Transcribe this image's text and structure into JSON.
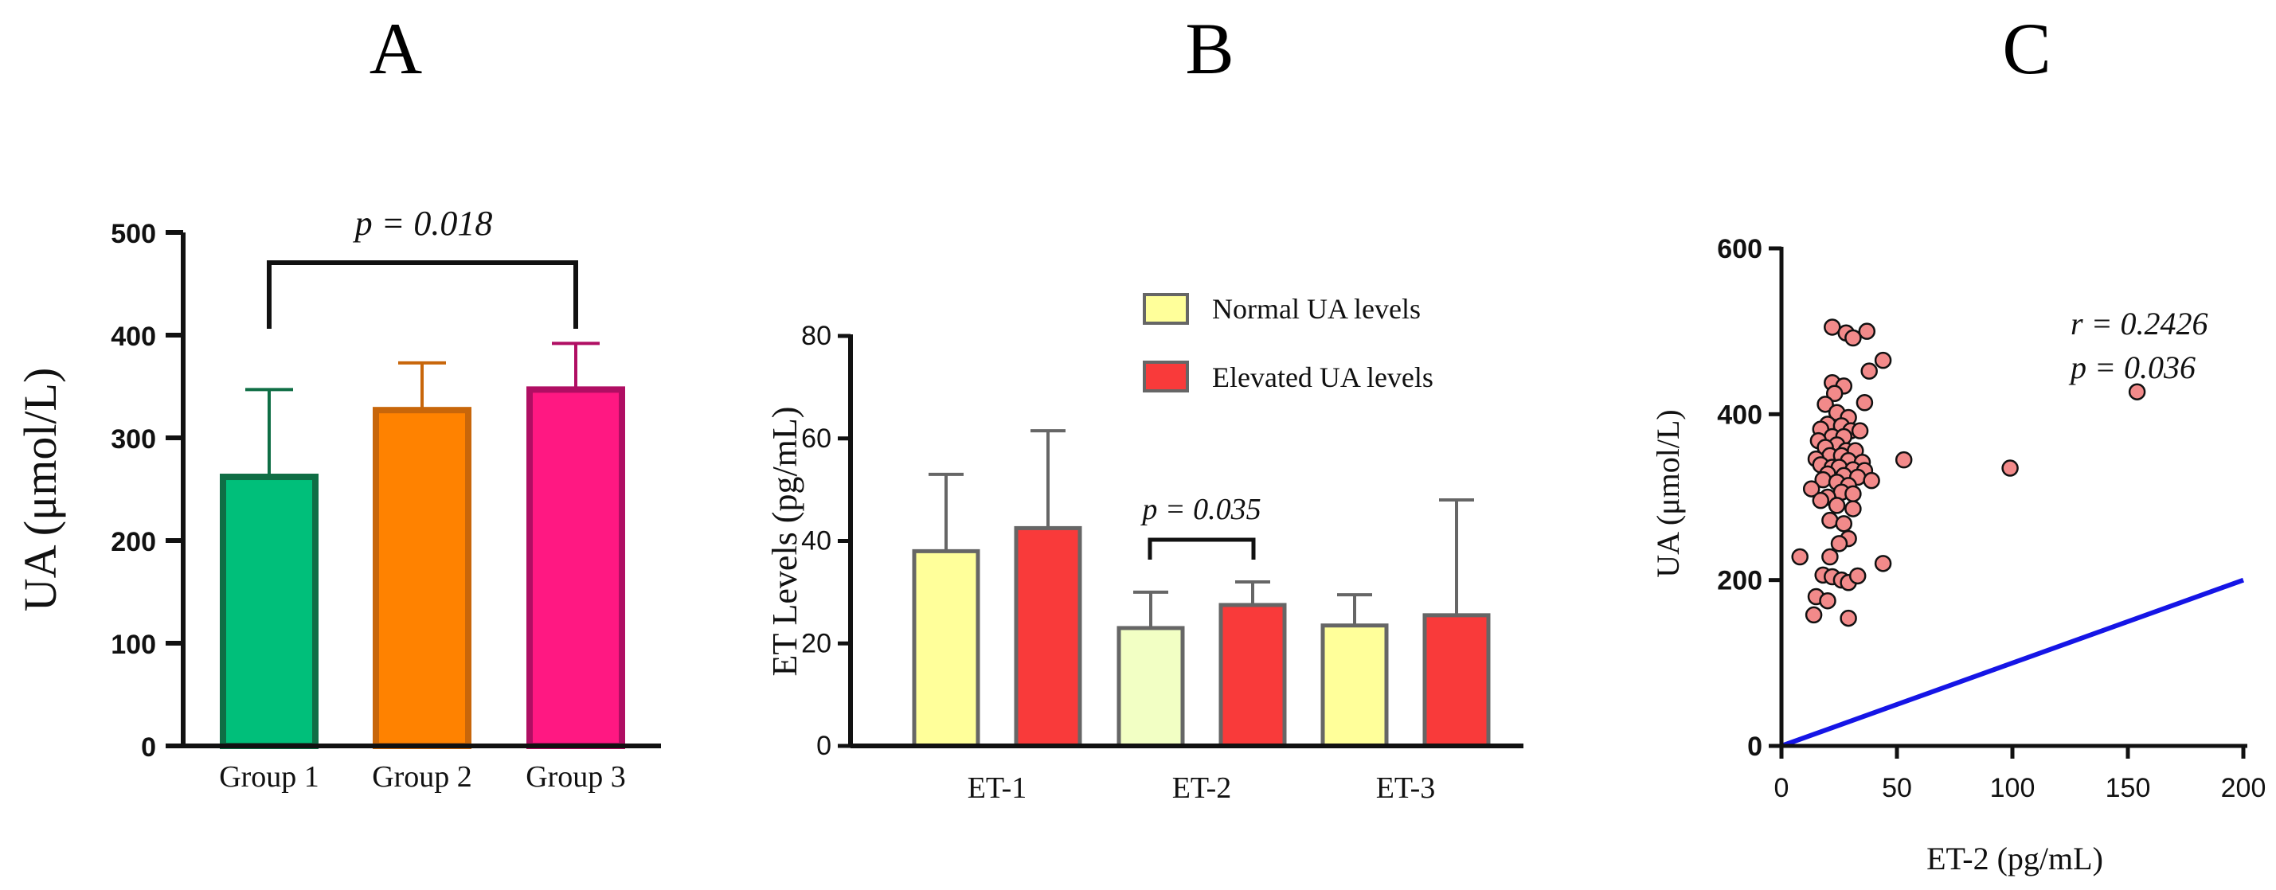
{
  "chart_data": [
    {
      "panel": "A",
      "type": "bar",
      "categories": [
        "Group 1",
        "Group 2",
        "Group 3"
      ],
      "values": [
        262,
        327,
        347
      ],
      "errors": [
        85,
        46,
        45
      ],
      "colors": [
        "#00BF7A",
        "#FF8200",
        "#FF1882"
      ],
      "edge_colors": [
        "#0F6E45",
        "#C8660A",
        "#B00E63"
      ],
      "ylabel": "UA (μmol/L)",
      "ylim": [
        0,
        500
      ],
      "yticks": [
        "0",
        "100",
        "200",
        "300",
        "400",
        "500"
      ],
      "annotation": "p = 0.018"
    },
    {
      "panel": "B",
      "type": "bar",
      "categories": [
        "ET-1",
        "ET-2",
        "ET-3"
      ],
      "series": [
        {
          "name": "Normal UA levels",
          "values": [
            38,
            23,
            23.5
          ],
          "errors": [
            15,
            7,
            6
          ],
          "color": "#FFFF9A"
        },
        {
          "name": "Elevated UA levels",
          "values": [
            42.5,
            27.5,
            25.5
          ],
          "errors": [
            19,
            4.5,
            22.5
          ],
          "color": "#F93A3A"
        }
      ],
      "ylabel": "ET Levels (pg/mL)",
      "ylim": [
        0,
        80
      ],
      "yticks": [
        "0",
        "20",
        "40",
        "60",
        "80"
      ],
      "annotation": "p = 0.035"
    },
    {
      "panel": "C",
      "type": "scatter",
      "xlabel": "ET-2 (pg/mL)",
      "ylabel": "UA (μmol/L)",
      "xlim": [
        0,
        200
      ],
      "ylim": [
        0,
        600
      ],
      "xticks": [
        "0",
        "50",
        "100",
        "150",
        "200"
      ],
      "yticks": [
        "0",
        "200",
        "400",
        "600"
      ],
      "points": [
        [
          22,
          505
        ],
        [
          28,
          498
        ],
        [
          31,
          492
        ],
        [
          37,
          500
        ],
        [
          44,
          465
        ],
        [
          38,
          452
        ],
        [
          22,
          438
        ],
        [
          27,
          434
        ],
        [
          23,
          425
        ],
        [
          36,
          414
        ],
        [
          19,
          412
        ],
        [
          24,
          402
        ],
        [
          29,
          396
        ],
        [
          20,
          388
        ],
        [
          26,
          386
        ],
        [
          17,
          382
        ],
        [
          30,
          380
        ],
        [
          34,
          380
        ],
        [
          22,
          373
        ],
        [
          27,
          373
        ],
        [
          16,
          368
        ],
        [
          24,
          363
        ],
        [
          19,
          360
        ],
        [
          28,
          356
        ],
        [
          32,
          356
        ],
        [
          21,
          350
        ],
        [
          26,
          350
        ],
        [
          15,
          346
        ],
        [
          29,
          344
        ],
        [
          35,
          342
        ],
        [
          53,
          345
        ],
        [
          99,
          335
        ],
        [
          17,
          339
        ],
        [
          22,
          336
        ],
        [
          25,
          336
        ],
        [
          31,
          333
        ],
        [
          36,
          332
        ],
        [
          20,
          328
        ],
        [
          27,
          326
        ],
        [
          33,
          324
        ],
        [
          39,
          320
        ],
        [
          18,
          321
        ],
        [
          24,
          318
        ],
        [
          29,
          314
        ],
        [
          13,
          310
        ],
        [
          26,
          306
        ],
        [
          31,
          304
        ],
        [
          20,
          300
        ],
        [
          17,
          296
        ],
        [
          24,
          290
        ],
        [
          31,
          286
        ],
        [
          21,
          272
        ],
        [
          27,
          268
        ],
        [
          29,
          250
        ],
        [
          25,
          244
        ],
        [
          21,
          228
        ],
        [
          8,
          228
        ],
        [
          44,
          220
        ],
        [
          18,
          206
        ],
        [
          22,
          204
        ],
        [
          26,
          200
        ],
        [
          29,
          197
        ],
        [
          33,
          205
        ],
        [
          15,
          180
        ],
        [
          20,
          175
        ],
        [
          14,
          158
        ],
        [
          29,
          154
        ],
        [
          154,
          427
        ]
      ],
      "regression_line": {
        "x": [
          0,
          200
        ],
        "y": [
          0,
          200
        ],
        "color": "#1515E6"
      },
      "annotation_r": "r = 0.2426",
      "annotation_p": "p = 0.036"
    }
  ]
}
